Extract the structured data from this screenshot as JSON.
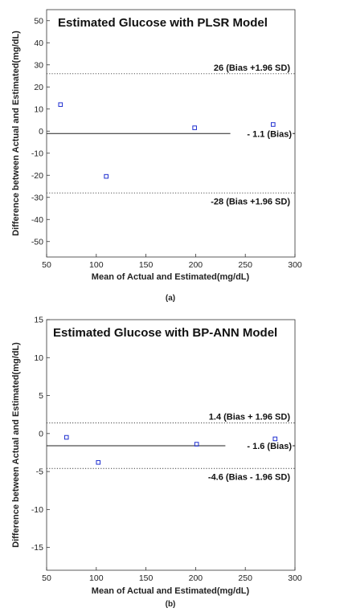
{
  "chart_data": [
    {
      "type": "scatter",
      "title": "Estimated Glucose with PLSR  Model",
      "xlabel": "Mean of  Actual  and Estimated(mg/dL)",
      "ylabel": "Difference between Actual  and Estimated(mg/dL)",
      "caption": "(a)",
      "xlim": [
        50,
        300
      ],
      "ylim": [
        -57,
        55
      ],
      "x_ticks": [
        50,
        100,
        150,
        200,
        250,
        300
      ],
      "y_ticks": [
        -50,
        -40,
        -30,
        -20,
        -10,
        0,
        10,
        20,
        30,
        40,
        50
      ],
      "grid": false,
      "point_color": "#1f2fd0",
      "points": [
        {
          "x": 64,
          "y": 12
        },
        {
          "x": 110,
          "y": -20.5
        },
        {
          "x": 199,
          "y": 1.5
        },
        {
          "x": 278,
          "y": 3
        }
      ],
      "lines": [
        {
          "y": 26,
          "style": "dotted",
          "label": "26 (Bias +1.96 SD)",
          "label_pos": "above"
        },
        {
          "y": -1.1,
          "style": "solid",
          "label": "- 1.1 (Bias)",
          "label_pos": "right"
        },
        {
          "y": -28,
          "style": "dotted",
          "label": "-28 (Bias +1.96 SD)",
          "label_pos": "below"
        }
      ]
    },
    {
      "type": "scatter",
      "title": "Estimated Glucose with BP-ANN Model",
      "xlabel": "Mean of  Actual  and Estimated(mg/dL)",
      "ylabel": "Difference between Actual  and Estimated(mg/dL)",
      "caption": "(b)",
      "xlim": [
        50,
        300
      ],
      "ylim": [
        -18,
        15
      ],
      "x_ticks": [
        50,
        100,
        150,
        200,
        250,
        300
      ],
      "y_ticks": [
        -15,
        -10,
        -5,
        0,
        5,
        10,
        15
      ],
      "grid": false,
      "point_color": "#1f2fd0",
      "points": [
        {
          "x": 70,
          "y": -0.5
        },
        {
          "x": 102,
          "y": -3.8
        },
        {
          "x": 201,
          "y": -1.4
        },
        {
          "x": 280,
          "y": -0.7
        }
      ],
      "lines": [
        {
          "y": 1.4,
          "style": "dotted",
          "label": "1.4 (Bias + 1.96 SD)",
          "label_pos": "above"
        },
        {
          "y": -1.6,
          "style": "solid",
          "label": "- 1.6  (Bias)",
          "label_pos": "right"
        },
        {
          "y": -4.6,
          "style": "dotted",
          "label": "-4.6 (Bias - 1.96 SD)",
          "label_pos": "below"
        }
      ]
    }
  ]
}
